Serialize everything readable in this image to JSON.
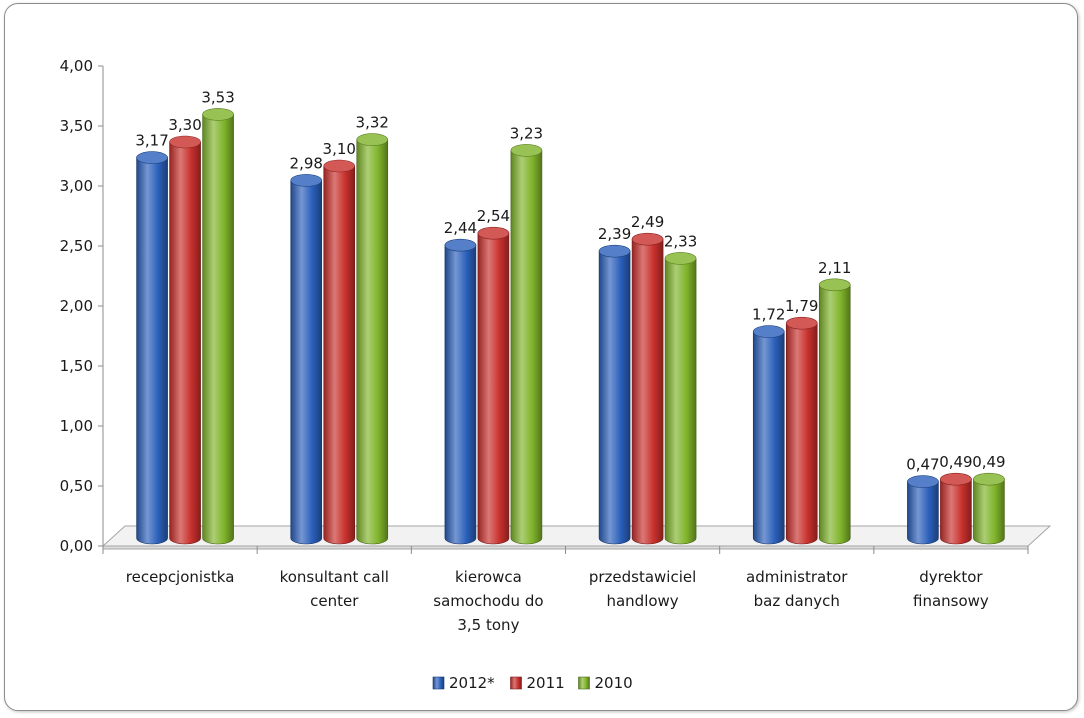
{
  "chart_data": {
    "type": "bar",
    "title": "",
    "xlabel": "",
    "ylabel": "",
    "ylim": [
      0,
      4
    ],
    "y_ticks": [
      "0,00",
      "0,50",
      "1,00",
      "1,50",
      "2,00",
      "2,50",
      "3,00",
      "3,50",
      "4,00"
    ],
    "categories": [
      [
        "recepcjonistka"
      ],
      [
        "konsultant call",
        "center"
      ],
      [
        "kierowca",
        "samochodu do",
        "3,5 tony"
      ],
      [
        "przedstawiciel",
        "handlowy"
      ],
      [
        "administrator",
        "baz danych"
      ],
      [
        "dyrektor",
        "finansowy"
      ]
    ],
    "series": [
      {
        "name": "2012*",
        "color": "#2a5fba",
        "values": [
          3.17,
          2.98,
          2.44,
          2.39,
          1.72,
          0.47
        ],
        "labels": [
          "3,17",
          "2,98",
          "2,44",
          "2,39",
          "1,72",
          "0,47"
        ]
      },
      {
        "name": "2011",
        "color": "#c8302c",
        "values": [
          3.3,
          3.1,
          2.54,
          2.49,
          1.79,
          0.49
        ],
        "labels": [
          "3,30",
          "3,10",
          "2,54",
          "2,49",
          "1,79",
          "0,49"
        ]
      },
      {
        "name": "2010",
        "color": "#7fb32a",
        "values": [
          3.53,
          3.32,
          3.23,
          2.33,
          2.11,
          0.49
        ],
        "labels": [
          "3,53",
          "3,32",
          "3,23",
          "2,33",
          "2,11",
          "0,49"
        ]
      }
    ],
    "legend": "bottom",
    "grid": false
  }
}
